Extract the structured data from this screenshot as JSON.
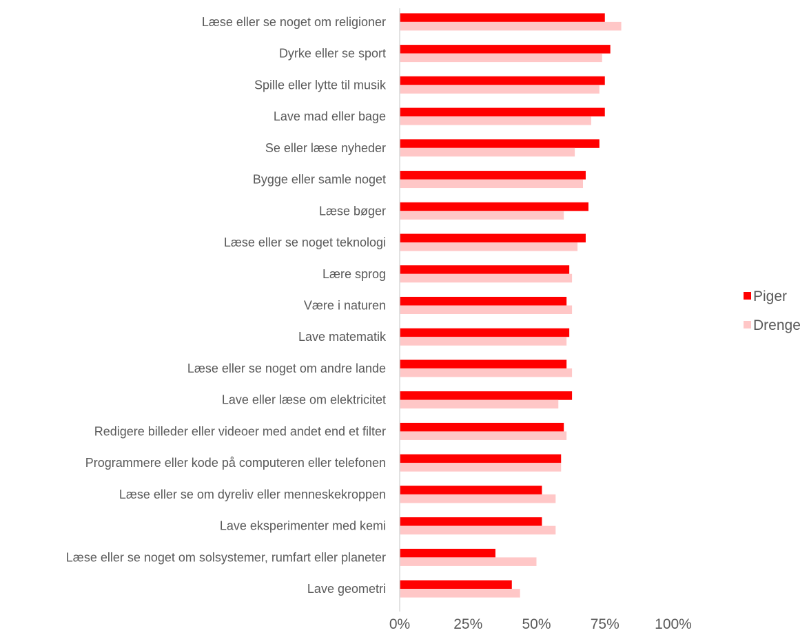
{
  "chart_data": {
    "type": "bar",
    "orientation": "horizontal",
    "title": "",
    "xlabel": "",
    "ylabel": "",
    "xlim": [
      0,
      100
    ],
    "x_ticks": [
      "0%",
      "25%",
      "50%",
      "75%",
      "100%"
    ],
    "grid": false,
    "legend_position": "right",
    "categories": [
      "Læse eller se noget om religioner",
      "Dyrke eller se sport",
      "Spille eller lytte til musik",
      "Lave mad eller bage",
      "Se eller læse nyheder",
      "Bygge eller samle noget",
      "Læse bøger",
      "Læse eller se noget teknologi",
      "Lære sprog",
      "Være i naturen",
      "Lave matematik",
      "Læse eller se noget om andre lande",
      "Lave eller læse om elektricitet",
      "Redigere billeder eller videoer med andet end et filter",
      "Programmere eller kode på computeren eller telefonen",
      "Læse eller se om dyreliv eller menneskekroppen",
      "Lave eksperimenter med kemi",
      "Læse eller se noget om solsystemer, rumfart eller planeter",
      "Lave geometri"
    ],
    "series": [
      {
        "name": "Piger",
        "color": "#ff0000",
        "values": [
          75,
          77,
          75,
          75,
          73,
          68,
          69,
          68,
          62,
          61,
          62,
          61,
          63,
          60,
          59,
          52,
          52,
          35,
          41
        ]
      },
      {
        "name": "Drenge",
        "color": "#ffc7c7",
        "values": [
          81,
          74,
          73,
          70,
          64,
          67,
          60,
          65,
          63,
          63,
          61,
          63,
          58,
          61,
          59,
          57,
          57,
          50,
          44
        ]
      }
    ]
  }
}
